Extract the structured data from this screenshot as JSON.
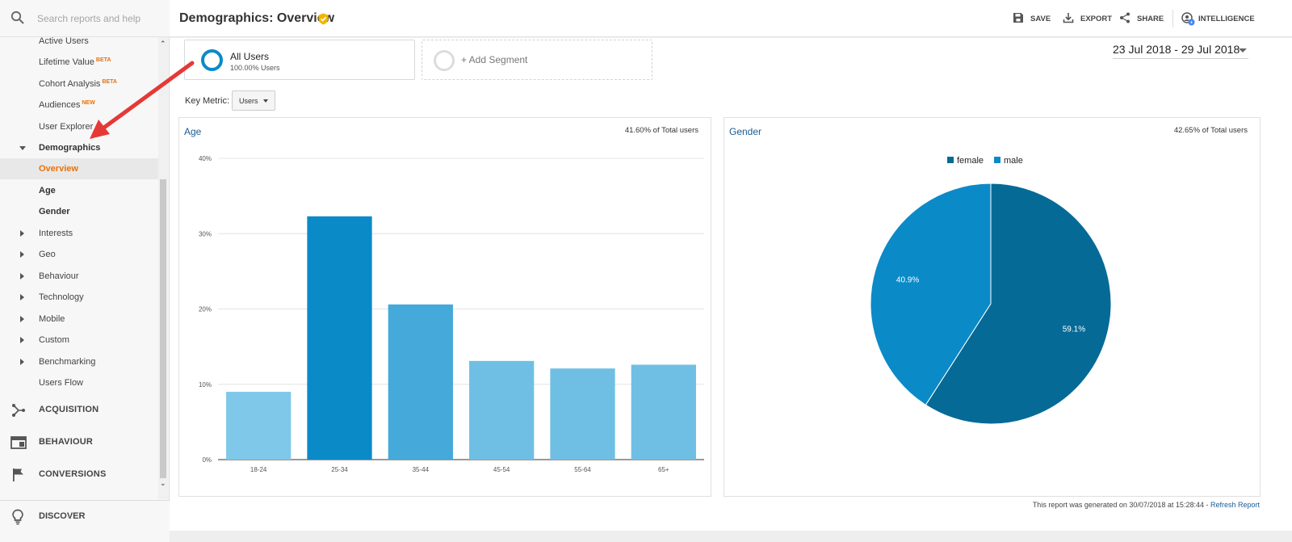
{
  "search": {
    "placeholder": "Search reports and help"
  },
  "sidebar": {
    "items": [
      {
        "label": "Active Users",
        "badge": ""
      },
      {
        "label": "Lifetime Value",
        "badge": "BETA"
      },
      {
        "label": "Cohort Analysis",
        "badge": "BETA"
      },
      {
        "label": "Audiences",
        "badge": "NEW"
      },
      {
        "label": "User Explorer",
        "badge": ""
      },
      {
        "label": "Demographics",
        "badge": ""
      },
      {
        "label": "Overview",
        "badge": ""
      },
      {
        "label": "Age",
        "badge": ""
      },
      {
        "label": "Gender",
        "badge": ""
      },
      {
        "label": "Interests",
        "badge": ""
      },
      {
        "label": "Geo",
        "badge": ""
      },
      {
        "label": "Behaviour",
        "badge": ""
      },
      {
        "label": "Technology",
        "badge": ""
      },
      {
        "label": "Mobile",
        "badge": ""
      },
      {
        "label": "Custom",
        "badge": ""
      },
      {
        "label": "Benchmarking",
        "badge": ""
      },
      {
        "label": "Users Flow",
        "badge": ""
      }
    ],
    "sections": [
      {
        "label": "ACQUISITION",
        "icon": "acquisition-icon"
      },
      {
        "label": "BEHAVIOUR",
        "icon": "behaviour-icon"
      },
      {
        "label": "CONVERSIONS",
        "icon": "flag-icon"
      }
    ],
    "discover": {
      "label": "DISCOVER",
      "icon": "lightbulb-icon"
    }
  },
  "header": {
    "title": "Demographics: Overview",
    "tools": {
      "save": "SAVE",
      "export": "EXPORT",
      "share": "SHARE",
      "intelligence": "INTELLIGENCE"
    }
  },
  "segments": {
    "all_users": {
      "title": "All Users",
      "subtitle": "100.00% Users"
    },
    "add_segment": "+ Add Segment"
  },
  "date_range": "23 Jul 2018 - 29 Jul 2018",
  "key_metric": {
    "label": "Key Metric:",
    "value": "Users"
  },
  "age_panel": {
    "title": "Age",
    "total_pct": "41.60% of Total users"
  },
  "gender_panel": {
    "title": "Gender",
    "total_pct": "42.65% of Total users"
  },
  "footer": {
    "note": "This report was generated on 30/07/2018 at 15:28:44 - ",
    "refresh": "Refresh Report"
  },
  "colors": {
    "accent": "#e8710a",
    "link": "#1a5c92",
    "bar_highlight": "#0b8ac8",
    "annotation": "#e53935"
  },
  "chart_data": [
    {
      "type": "bar",
      "title": "Age",
      "categories": [
        "18-24",
        "25-34",
        "35-44",
        "45-54",
        "55-64",
        "65+"
      ],
      "values": [
        9.0,
        32.3,
        20.6,
        13.1,
        12.1,
        12.6
      ],
      "unit": "%",
      "ylim": [
        0,
        40
      ],
      "yticks": [
        "0%",
        "10%",
        "20%",
        "30%",
        "40%"
      ],
      "bar_colors": [
        "#7fc8ea",
        "#0b8ac8",
        "#45a9da",
        "#6fbfe4",
        "#6fbfe4",
        "#6fbfe4"
      ],
      "grid": true
    },
    {
      "type": "pie",
      "title": "Gender",
      "legend_position": "top",
      "slices": [
        {
          "label": "female",
          "value": 59.1,
          "display": "59.1%",
          "color": "#066a96"
        },
        {
          "label": "male",
          "value": 40.9,
          "display": "40.9%",
          "color": "#0b8ac8"
        }
      ]
    }
  ]
}
